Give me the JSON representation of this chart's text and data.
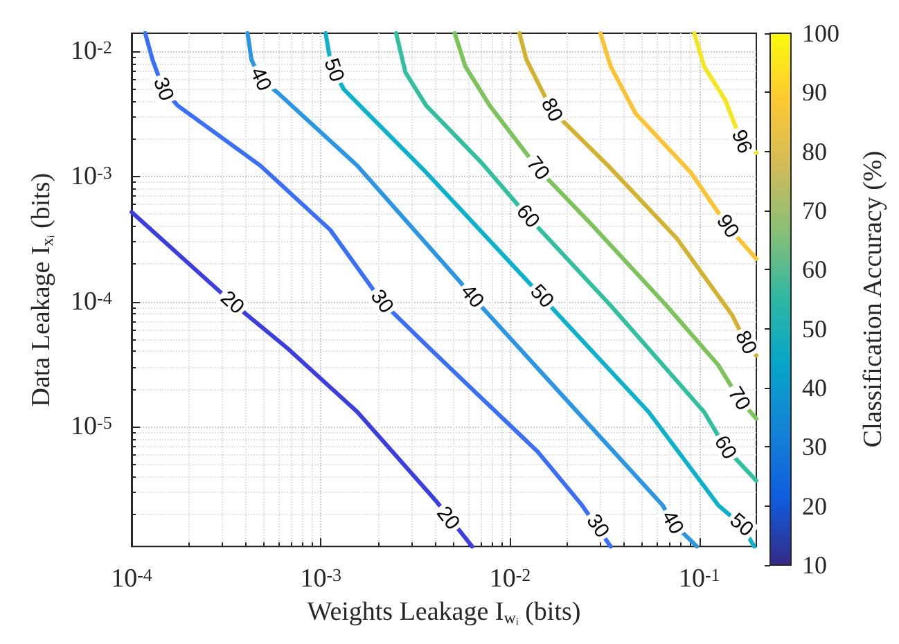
{
  "chart_data": {
    "type": "line",
    "xlabel": "Weights Leakage I$_{wᵢ}$ (bits)",
    "ylabel": "Data Leakage I$_{xᵢ}$ (bits)",
    "clabel": "Classification Accuracy (%)",
    "log": "xy",
    "grid": true,
    "marker": "none",
    "line_style": "solid",
    "xlim": [
      0.0001,
      0.2
    ],
    "ylim": [
      1.1e-06,
      0.014
    ],
    "xticks": [
      {
        "value": 0.0001,
        "label": "10$^{-4}$"
      },
      {
        "value": 0.001,
        "label": "10$^{-3}$"
      },
      {
        "value": 0.01,
        "label": "10$^{-2}$"
      },
      {
        "value": 0.1,
        "label": "10$^{-1}$"
      }
    ],
    "yticks": [
      {
        "value": 1e-05,
        "label": "10$^{-5}$"
      },
      {
        "value": 0.0001,
        "label": "10$^{-4}$"
      },
      {
        "value": 0.001,
        "label": "10$^{-3}$"
      },
      {
        "value": 0.01,
        "label": "10$^{-2}$"
      }
    ],
    "clim": [
      10,
      100
    ],
    "cticks": [
      10,
      20,
      30,
      40,
      50,
      60,
      70,
      80,
      90,
      100
    ],
    "series": [
      {
        "color": "#3d3ee0",
        "x": [
          0.0001,
          0.00034,
          0.00067,
          0.00156,
          0.0041,
          0.0063
        ],
        "values": [
          0.00052,
          9.8e-05,
          4.2e-05,
          1.31e-05,
          2.5e-06,
          1.1e-06
        ]
      },
      {
        "color": "#3a6ff8",
        "x": [
          0.000118,
          0.000129,
          0.000147,
          0.000175,
          0.00048,
          0.00112,
          0.0021,
          0.0036,
          0.006,
          0.014,
          0.024,
          0.034
        ],
        "values": [
          0.014,
          0.0086,
          0.005,
          0.0037,
          0.00122,
          0.000375,
          0.0001,
          4.5e-05,
          2.14e-05,
          6.3e-06,
          2.35e-06,
          1.1e-06
        ]
      },
      {
        "color": "#2a96e4",
        "x": [
          0.00041,
          0.00043,
          0.00048,
          0.00059,
          0.00156,
          0.0055,
          0.0063,
          0.0196,
          0.064,
          0.072,
          0.097
        ],
        "values": [
          0.014,
          0.0086,
          0.006,
          0.0047,
          0.00122,
          0.000141,
          0.00011,
          1.67e-05,
          2.35e-06,
          1.71e-06,
          1.1e-06
        ]
      },
      {
        "color": "#0cb2cc",
        "x": [
          0.00106,
          0.00112,
          0.00117,
          0.00132,
          0.0036,
          0.0147,
          0.0175,
          0.054,
          0.126,
          0.167,
          0.195
        ],
        "values": [
          0.014,
          0.0086,
          0.0071,
          0.005,
          0.00108,
          0.00011,
          8.2e-05,
          1.31e-05,
          2.35e-06,
          1.63e-06,
          1.1e-06
        ]
      },
      {
        "color": "#30c0a0",
        "x": [
          0.0025,
          0.0028,
          0.0036,
          0.0071,
          0.0124,
          0.034,
          0.106,
          0.137,
          0.2
        ],
        "values": [
          0.014,
          0.0068,
          0.0037,
          0.00128,
          0.00048,
          9.3e-05,
          1.31e-05,
          6.8e-06,
          3.7e-06
        ]
      },
      {
        "color": "#7bc35a",
        "x": [
          0.0051,
          0.0058,
          0.0078,
          0.014,
          0.0275,
          0.067,
          0.126,
          0.162,
          0.2
        ],
        "values": [
          0.014,
          0.0076,
          0.0037,
          0.00116,
          0.0004,
          9.3e-05,
          3.1e-05,
          1.67e-05,
          1.16e-05
        ]
      },
      {
        "color": "#d2b22f",
        "x": [
          0.0112,
          0.0122,
          0.0166,
          0.033,
          0.076,
          0.149,
          0.176,
          0.2
        ],
        "values": [
          0.014,
          0.0086,
          0.0034,
          0.00122,
          0.00032,
          7.8e-05,
          4.7e-05,
          3.7e-05
        ]
      },
      {
        "color": "#fcc434",
        "x": [
          0.03,
          0.034,
          0.046,
          0.09,
          0.141,
          0.2
        ],
        "values": [
          0.014,
          0.0076,
          0.0032,
          0.00108,
          0.0004,
          0.00022
        ]
      },
      {
        "color": "#f5e61e",
        "x": [
          0.094,
          0.106,
          0.137,
          0.167,
          0.2
        ],
        "values": [
          0.014,
          0.0076,
          0.0041,
          0.0019,
          0.00155
        ]
      }
    ],
    "annotations": [
      {
        "text": "30",
        "x": 0.000147,
        "y": 0.005
      },
      {
        "text": "40",
        "x": 0.00048,
        "y": 0.006
      },
      {
        "text": "50",
        "x": 0.00117,
        "y": 0.0071
      },
      {
        "text": "20",
        "x": 0.00034,
        "y": 9.8e-05
      },
      {
        "text": "30",
        "x": 0.0021,
        "y": 0.0001
      },
      {
        "text": "40",
        "x": 0.0063,
        "y": 0.00011
      },
      {
        "text": "50",
        "x": 0.0147,
        "y": 0.00011
      },
      {
        "text": "60",
        "x": 0.0124,
        "y": 0.00048
      },
      {
        "text": "70",
        "x": 0.014,
        "y": 0.00116
      },
      {
        "text": "80",
        "x": 0.0166,
        "y": 0.0034
      },
      {
        "text": "90",
        "x": 0.141,
        "y": 0.0004
      },
      {
        "text": "96",
        "x": 0.167,
        "y": 0.0019
      },
      {
        "text": "80",
        "x": 0.176,
        "y": 4.7e-05
      },
      {
        "text": "70",
        "x": 0.162,
        "y": 1.67e-05
      },
      {
        "text": "60",
        "x": 0.137,
        "y": 6.8e-06
      },
      {
        "text": "50",
        "x": 0.167,
        "y": 1.63e-06
      },
      {
        "text": "40",
        "x": 0.072,
        "y": 1.71e-06
      },
      {
        "text": "30",
        "x": 0.029,
        "y": 1.6e-06
      },
      {
        "text": "20",
        "x": 0.0047,
        "y": 1.85e-06
      }
    ]
  }
}
